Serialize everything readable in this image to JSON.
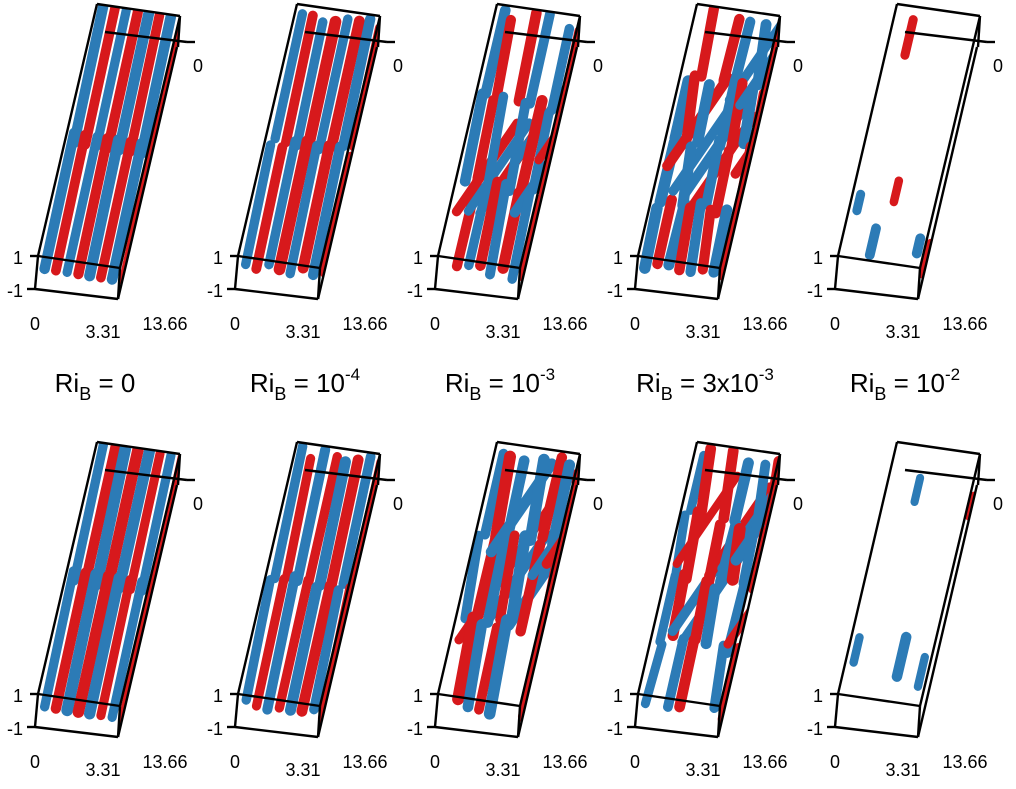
{
  "colors": {
    "positive": "#d7191c",
    "negative": "#2c7bb6",
    "frame": "#000000"
  },
  "axis_ticks": {
    "z_top": "0",
    "y_top": "1",
    "y_bottom": "-1",
    "x_origin": "0",
    "x_mid": "3.31",
    "z_end": "13.66"
  },
  "labels": [
    {
      "base": "Ri",
      "sub": "B",
      "eq": " = 0",
      "sup": ""
    },
    {
      "base": "Ri",
      "sub": "B",
      "eq": " = 10",
      "sup": "-4"
    },
    {
      "base": "Ri",
      "sub": "B",
      "eq": " = 10",
      "sup": "-3"
    },
    {
      "base": "Ri",
      "sub": "B",
      "eq": " = 3x10",
      "sup": "-3"
    },
    {
      "base": "Ri",
      "sub": "B",
      "eq": " = 10",
      "sup": "-2"
    }
  ],
  "rows": [
    {
      "panels": [
        {
          "density": 0.18,
          "tilt": 0.05
        },
        {
          "density": 0.22,
          "tilt": 0.08
        },
        {
          "density": 0.35,
          "tilt": 0.18
        },
        {
          "density": 0.55,
          "tilt": 0.3
        },
        {
          "density": 0.92,
          "tilt": 0.1
        }
      ]
    },
    {
      "panels": [
        {
          "density": 0.18,
          "tilt": 0.05
        },
        {
          "density": 0.25,
          "tilt": 0.12
        },
        {
          "density": 0.4,
          "tilt": 0.25
        },
        {
          "density": 0.6,
          "tilt": 0.35
        },
        {
          "density": 0.85,
          "tilt": 0.15
        }
      ]
    }
  ]
}
